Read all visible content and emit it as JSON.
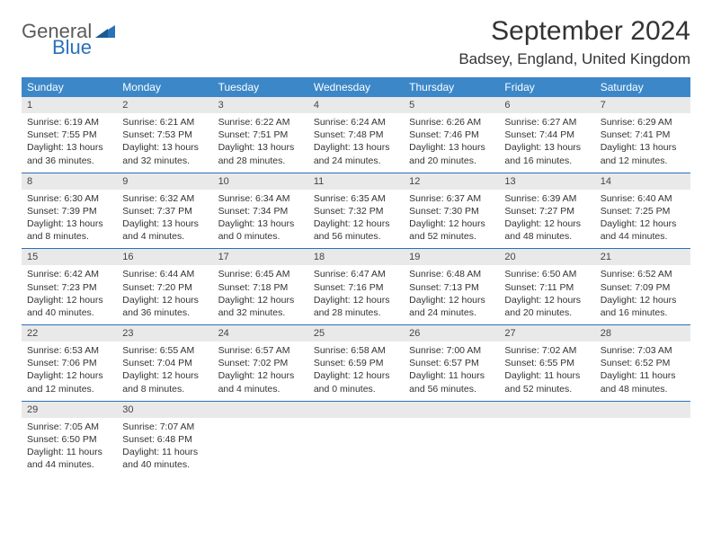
{
  "logo": {
    "text_general": "General",
    "text_blue": "Blue",
    "color_gray": "#5b5b5b",
    "color_blue": "#2a71b8"
  },
  "header": {
    "month_title": "September 2024",
    "location": "Badsey, England, United Kingdom"
  },
  "colors": {
    "header_band": "#3b87c8",
    "daynum_band": "#e9e9e9",
    "rule": "#2a71b8",
    "text": "#333333"
  },
  "day_names": [
    "Sunday",
    "Monday",
    "Tuesday",
    "Wednesday",
    "Thursday",
    "Friday",
    "Saturday"
  ],
  "weeks": [
    [
      {
        "num": "1",
        "sunrise": "Sunrise: 6:19 AM",
        "sunset": "Sunset: 7:55 PM",
        "daylight": "Daylight: 13 hours and 36 minutes."
      },
      {
        "num": "2",
        "sunrise": "Sunrise: 6:21 AM",
        "sunset": "Sunset: 7:53 PM",
        "daylight": "Daylight: 13 hours and 32 minutes."
      },
      {
        "num": "3",
        "sunrise": "Sunrise: 6:22 AM",
        "sunset": "Sunset: 7:51 PM",
        "daylight": "Daylight: 13 hours and 28 minutes."
      },
      {
        "num": "4",
        "sunrise": "Sunrise: 6:24 AM",
        "sunset": "Sunset: 7:48 PM",
        "daylight": "Daylight: 13 hours and 24 minutes."
      },
      {
        "num": "5",
        "sunrise": "Sunrise: 6:26 AM",
        "sunset": "Sunset: 7:46 PM",
        "daylight": "Daylight: 13 hours and 20 minutes."
      },
      {
        "num": "6",
        "sunrise": "Sunrise: 6:27 AM",
        "sunset": "Sunset: 7:44 PM",
        "daylight": "Daylight: 13 hours and 16 minutes."
      },
      {
        "num": "7",
        "sunrise": "Sunrise: 6:29 AM",
        "sunset": "Sunset: 7:41 PM",
        "daylight": "Daylight: 13 hours and 12 minutes."
      }
    ],
    [
      {
        "num": "8",
        "sunrise": "Sunrise: 6:30 AM",
        "sunset": "Sunset: 7:39 PM",
        "daylight": "Daylight: 13 hours and 8 minutes."
      },
      {
        "num": "9",
        "sunrise": "Sunrise: 6:32 AM",
        "sunset": "Sunset: 7:37 PM",
        "daylight": "Daylight: 13 hours and 4 minutes."
      },
      {
        "num": "10",
        "sunrise": "Sunrise: 6:34 AM",
        "sunset": "Sunset: 7:34 PM",
        "daylight": "Daylight: 13 hours and 0 minutes."
      },
      {
        "num": "11",
        "sunrise": "Sunrise: 6:35 AM",
        "sunset": "Sunset: 7:32 PM",
        "daylight": "Daylight: 12 hours and 56 minutes."
      },
      {
        "num": "12",
        "sunrise": "Sunrise: 6:37 AM",
        "sunset": "Sunset: 7:30 PM",
        "daylight": "Daylight: 12 hours and 52 minutes."
      },
      {
        "num": "13",
        "sunrise": "Sunrise: 6:39 AM",
        "sunset": "Sunset: 7:27 PM",
        "daylight": "Daylight: 12 hours and 48 minutes."
      },
      {
        "num": "14",
        "sunrise": "Sunrise: 6:40 AM",
        "sunset": "Sunset: 7:25 PM",
        "daylight": "Daylight: 12 hours and 44 minutes."
      }
    ],
    [
      {
        "num": "15",
        "sunrise": "Sunrise: 6:42 AM",
        "sunset": "Sunset: 7:23 PM",
        "daylight": "Daylight: 12 hours and 40 minutes."
      },
      {
        "num": "16",
        "sunrise": "Sunrise: 6:44 AM",
        "sunset": "Sunset: 7:20 PM",
        "daylight": "Daylight: 12 hours and 36 minutes."
      },
      {
        "num": "17",
        "sunrise": "Sunrise: 6:45 AM",
        "sunset": "Sunset: 7:18 PM",
        "daylight": "Daylight: 12 hours and 32 minutes."
      },
      {
        "num": "18",
        "sunrise": "Sunrise: 6:47 AM",
        "sunset": "Sunset: 7:16 PM",
        "daylight": "Daylight: 12 hours and 28 minutes."
      },
      {
        "num": "19",
        "sunrise": "Sunrise: 6:48 AM",
        "sunset": "Sunset: 7:13 PM",
        "daylight": "Daylight: 12 hours and 24 minutes."
      },
      {
        "num": "20",
        "sunrise": "Sunrise: 6:50 AM",
        "sunset": "Sunset: 7:11 PM",
        "daylight": "Daylight: 12 hours and 20 minutes."
      },
      {
        "num": "21",
        "sunrise": "Sunrise: 6:52 AM",
        "sunset": "Sunset: 7:09 PM",
        "daylight": "Daylight: 12 hours and 16 minutes."
      }
    ],
    [
      {
        "num": "22",
        "sunrise": "Sunrise: 6:53 AM",
        "sunset": "Sunset: 7:06 PM",
        "daylight": "Daylight: 12 hours and 12 minutes."
      },
      {
        "num": "23",
        "sunrise": "Sunrise: 6:55 AM",
        "sunset": "Sunset: 7:04 PM",
        "daylight": "Daylight: 12 hours and 8 minutes."
      },
      {
        "num": "24",
        "sunrise": "Sunrise: 6:57 AM",
        "sunset": "Sunset: 7:02 PM",
        "daylight": "Daylight: 12 hours and 4 minutes."
      },
      {
        "num": "25",
        "sunrise": "Sunrise: 6:58 AM",
        "sunset": "Sunset: 6:59 PM",
        "daylight": "Daylight: 12 hours and 0 minutes."
      },
      {
        "num": "26",
        "sunrise": "Sunrise: 7:00 AM",
        "sunset": "Sunset: 6:57 PM",
        "daylight": "Daylight: 11 hours and 56 minutes."
      },
      {
        "num": "27",
        "sunrise": "Sunrise: 7:02 AM",
        "sunset": "Sunset: 6:55 PM",
        "daylight": "Daylight: 11 hours and 52 minutes."
      },
      {
        "num": "28",
        "sunrise": "Sunrise: 7:03 AM",
        "sunset": "Sunset: 6:52 PM",
        "daylight": "Daylight: 11 hours and 48 minutes."
      }
    ],
    [
      {
        "num": "29",
        "sunrise": "Sunrise: 7:05 AM",
        "sunset": "Sunset: 6:50 PM",
        "daylight": "Daylight: 11 hours and 44 minutes."
      },
      {
        "num": "30",
        "sunrise": "Sunrise: 7:07 AM",
        "sunset": "Sunset: 6:48 PM",
        "daylight": "Daylight: 11 hours and 40 minutes."
      },
      null,
      null,
      null,
      null,
      null
    ]
  ]
}
